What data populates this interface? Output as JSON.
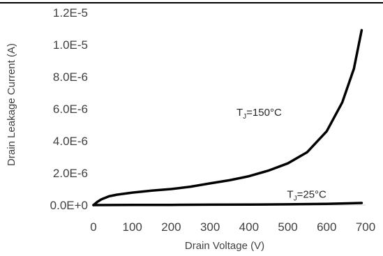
{
  "chart_data": {
    "type": "line",
    "title": "",
    "xlabel": "Drain Voltage (V)",
    "ylabel": "Drain Leakage Current (A)",
    "xlim": [
      0,
      700
    ],
    "ylim": [
      0,
      1.2e-05
    ],
    "xticks": [
      0,
      100,
      200,
      300,
      400,
      500,
      600,
      700
    ],
    "xtick_labels": [
      "0",
      "100",
      "200",
      "300",
      "400",
      "500",
      "600",
      "700"
    ],
    "yticks": [
      0,
      2e-06,
      4e-06,
      6e-06,
      8e-06,
      1e-05,
      1.2e-05
    ],
    "ytick_labels": [
      "0.0E+0",
      "2.0E-6",
      "4.0E-6",
      "6.0E-6",
      "8.0E-6",
      "1.0E-5",
      "1.2E-5"
    ],
    "grid": false,
    "legend": "none",
    "line_color": "#000000",
    "series": [
      {
        "x": [
          0,
          10,
          20,
          40,
          60,
          100,
          150,
          200,
          250,
          300,
          350,
          400,
          450,
          500,
          550,
          600,
          640,
          670,
          690
        ],
        "values": [
          0.0,
          2e-07,
          3.5e-07,
          5.5e-07,
          6.5e-07,
          7.8e-07,
          9e-07,
          1e-06,
          1.15e-06,
          1.35e-06,
          1.55e-06,
          1.8e-06,
          2.15e-06,
          2.6e-06,
          3.3e-06,
          4.6e-06,
          6.4e-06,
          8.5e-06,
          1.09e-05
        ]
      },
      {
        "x": [
          0,
          100,
          200,
          300,
          400,
          500,
          600,
          690
        ],
        "values": [
          0.0,
          1e-08,
          1.5e-08,
          2.5e-08,
          3.5e-08,
          5e-08,
          8e-08,
          1.3e-07
        ]
      }
    ],
    "annotations": [
      {
        "main": "T",
        "sub": "J",
        "rest": "=150°C",
        "x": 350,
        "y": 6e-06
      },
      {
        "main": "T",
        "sub": "J",
        "rest": "=25°C",
        "x": 480,
        "y": 9e-07
      }
    ]
  }
}
